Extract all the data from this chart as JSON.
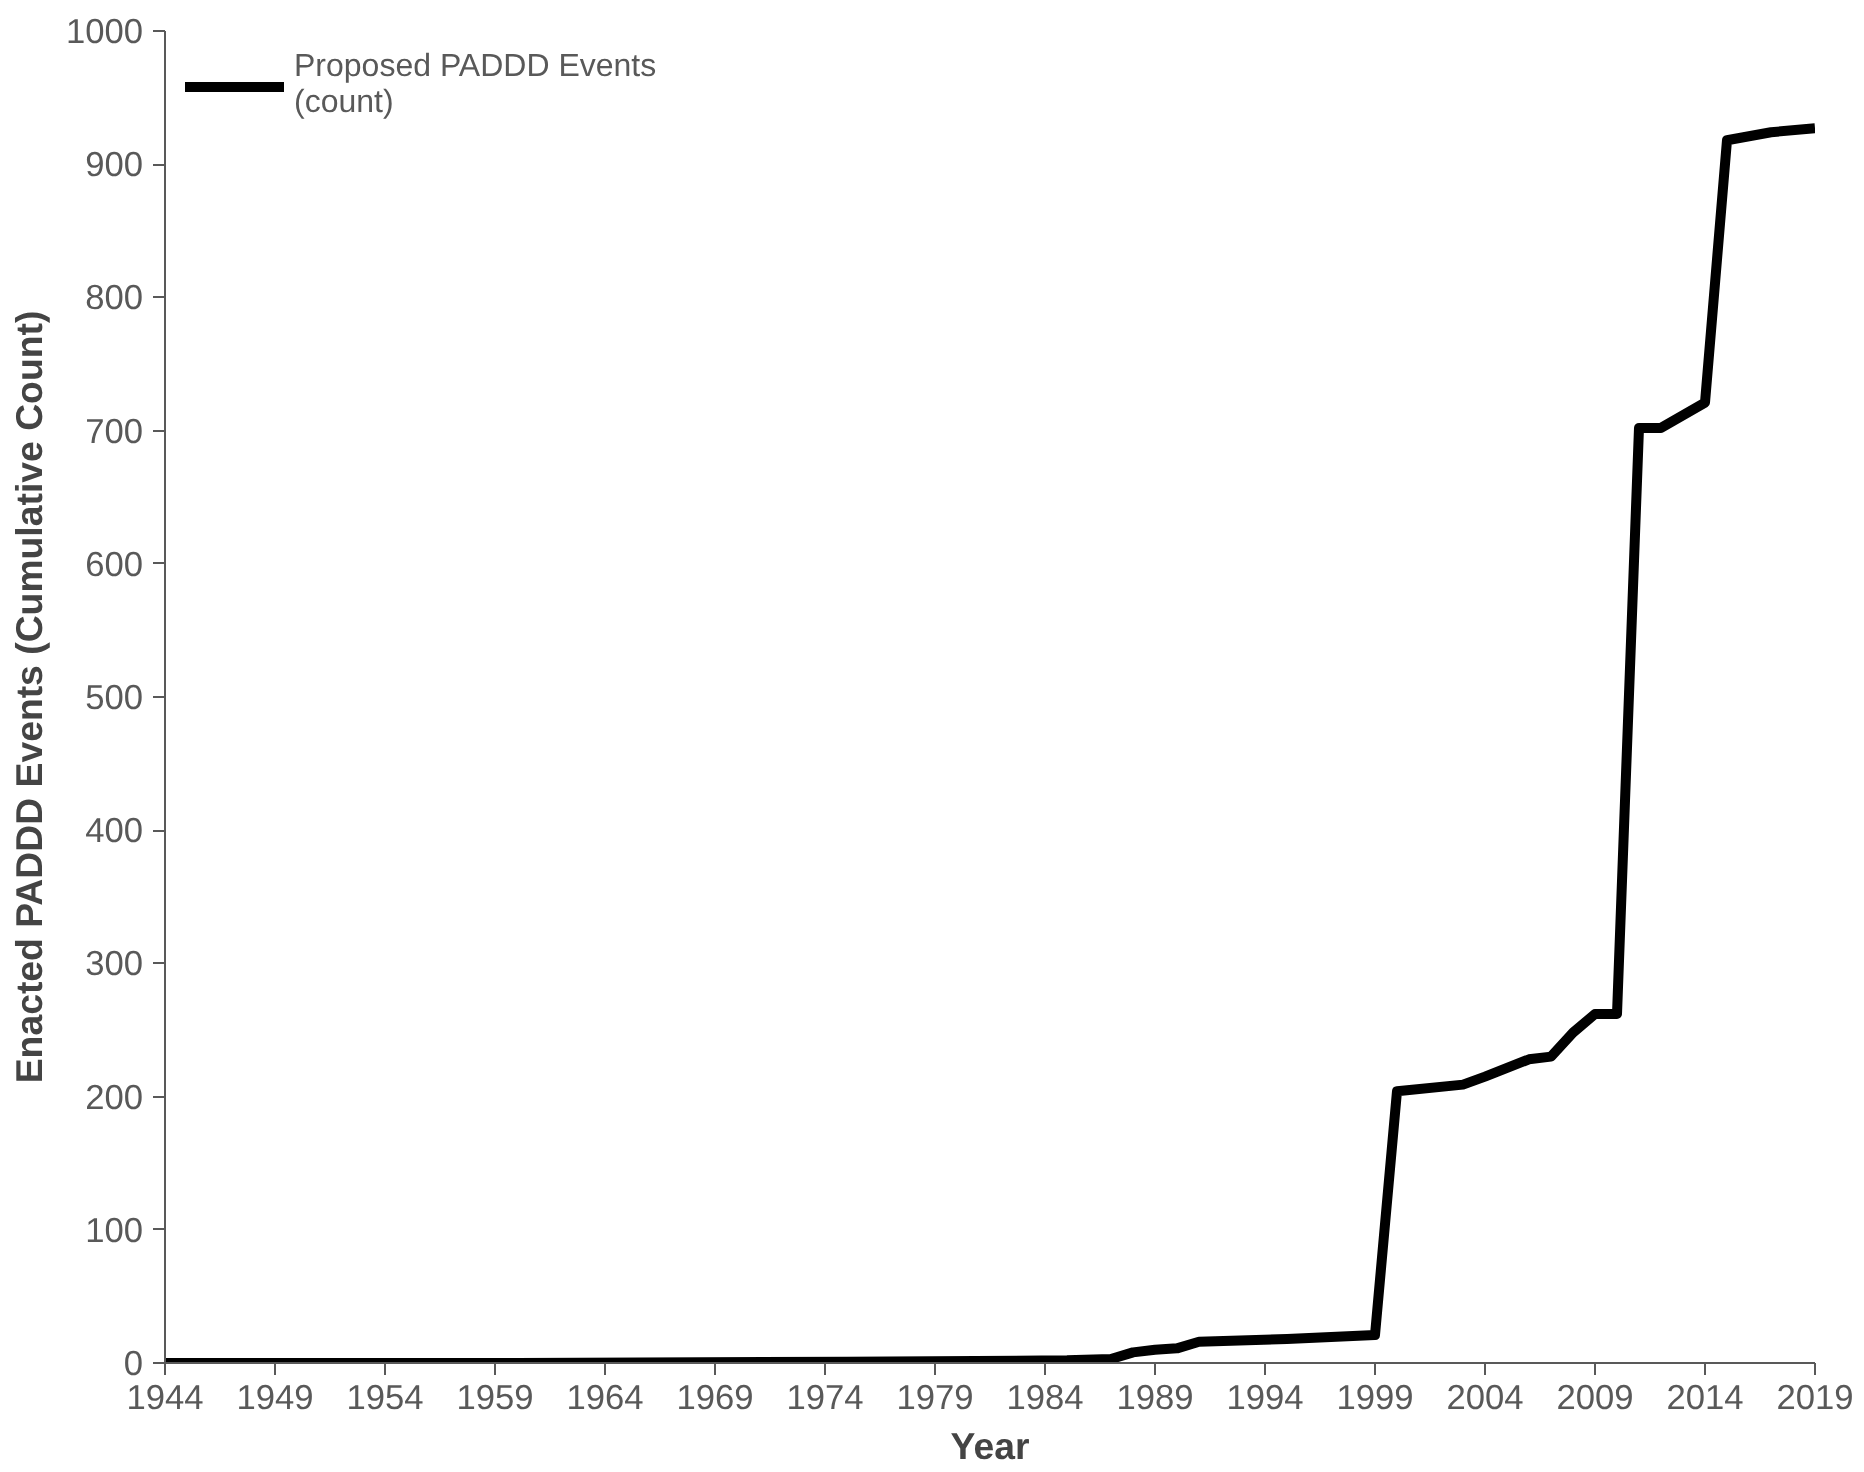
{
  "chart_data": {
    "type": "line",
    "xlabel": "Year",
    "ylabel": "Enacted PADDD Events (Cumulative Count)",
    "x": [
      1944,
      1960,
      1975,
      1985,
      1987,
      1988,
      1989,
      1990,
      1991,
      1995,
      1999,
      2000,
      2003,
      2004,
      2006,
      2007,
      2008,
      2009,
      2010,
      2011,
      2012,
      2014,
      2015,
      2017,
      2019
    ],
    "series": [
      {
        "name": "Proposed PADDD Events\n(count)",
        "color": "#000000",
        "values": [
          0,
          0,
          1,
          2,
          3,
          8,
          10,
          11,
          16,
          18,
          21,
          204,
          209,
          215,
          228,
          230,
          248,
          262,
          262,
          702,
          702,
          721,
          918,
          924,
          927
        ]
      }
    ],
    "xlim": [
      1944,
      2019
    ],
    "xticks": [
      1944,
      1949,
      1954,
      1959,
      1964,
      1969,
      1974,
      1979,
      1984,
      1989,
      1994,
      1999,
      2004,
      2009,
      2014,
      2019
    ],
    "ylim": [
      0,
      1000
    ],
    "yticks": [
      0,
      100,
      200,
      300,
      400,
      500,
      600,
      700,
      800,
      900,
      1000
    ],
    "grid": false,
    "legend": "top left",
    "line_style": "solid",
    "marker": "none"
  }
}
